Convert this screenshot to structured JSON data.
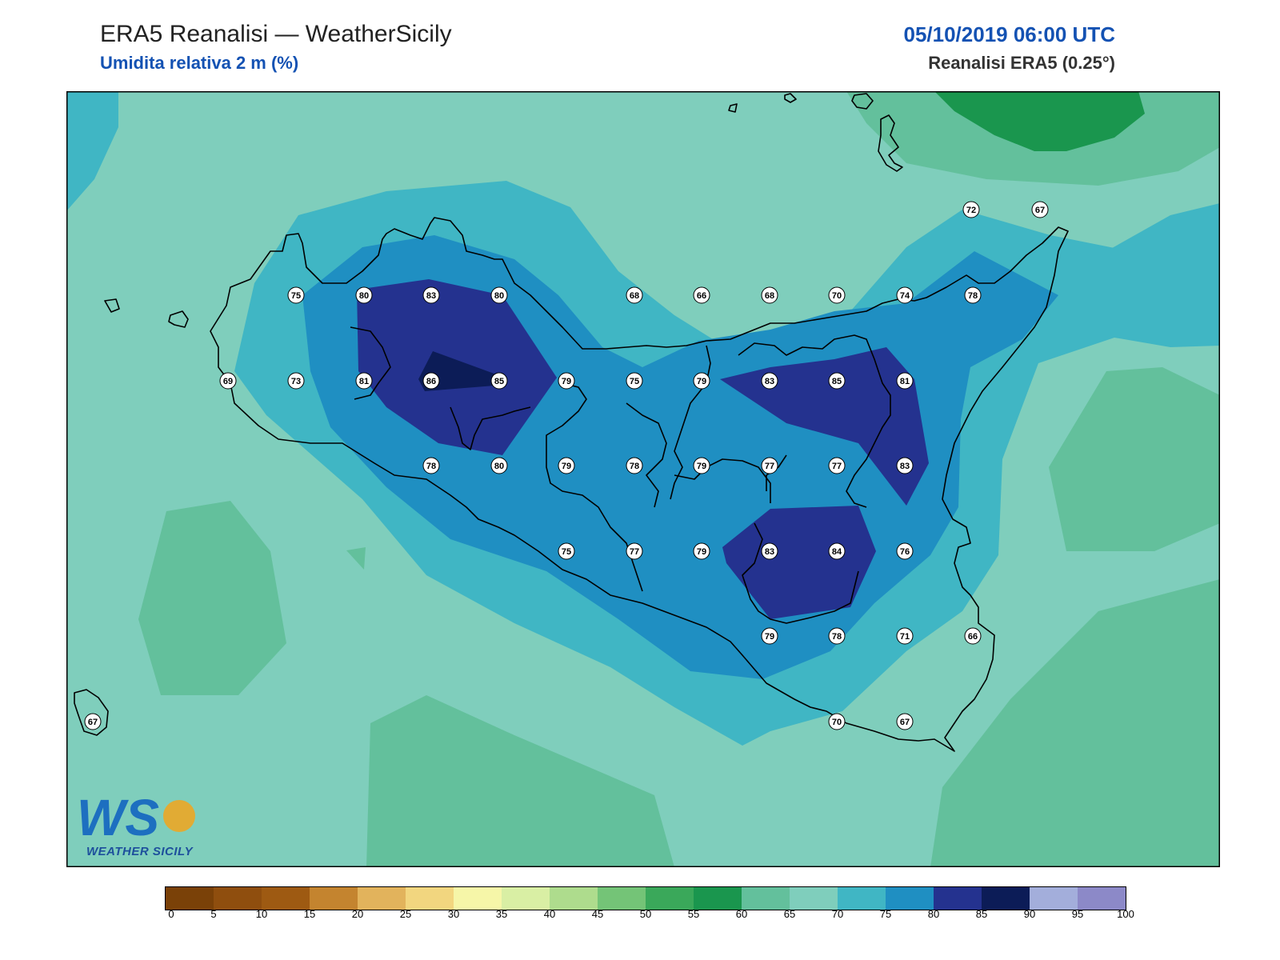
{
  "header": {
    "title": "ERA5 Reanalisi — WeatherSicily",
    "subtitle": "Umidita relativa 2 m (%)",
    "datetime": "05/10/2019 06:00 UTC",
    "source": "Reanalisi ERA5 (0.25°)"
  },
  "map": {
    "variable": "relative humidity 2 m",
    "unit": "%",
    "station_values": [
      {
        "value": "72"
      },
      {
        "value": "67"
      },
      {
        "value": "75"
      },
      {
        "value": "80"
      },
      {
        "value": "83"
      },
      {
        "value": "80"
      },
      {
        "value": "68"
      },
      {
        "value": "66"
      },
      {
        "value": "68"
      },
      {
        "value": "70"
      },
      {
        "value": "74"
      },
      {
        "value": "78"
      },
      {
        "value": "69"
      },
      {
        "value": "73"
      },
      {
        "value": "81"
      },
      {
        "value": "86"
      },
      {
        "value": "85"
      },
      {
        "value": "79"
      },
      {
        "value": "75"
      },
      {
        "value": "79"
      },
      {
        "value": "83"
      },
      {
        "value": "85"
      },
      {
        "value": "81"
      },
      {
        "value": "78"
      },
      {
        "value": "80"
      },
      {
        "value": "79"
      },
      {
        "value": "78"
      },
      {
        "value": "79"
      },
      {
        "value": "77"
      },
      {
        "value": "77"
      },
      {
        "value": "83"
      },
      {
        "value": "75"
      },
      {
        "value": "77"
      },
      {
        "value": "79"
      },
      {
        "value": "83"
      },
      {
        "value": "84"
      },
      {
        "value": "76"
      },
      {
        "value": "79"
      },
      {
        "value": "78"
      },
      {
        "value": "71"
      },
      {
        "value": "66"
      },
      {
        "value": "67"
      },
      {
        "value": "70"
      },
      {
        "value": "67"
      }
    ]
  },
  "colorbar": {
    "ticks": [
      "0",
      "5",
      "10",
      "15",
      "20",
      "25",
      "30",
      "35",
      "40",
      "45",
      "50",
      "55",
      "60",
      "65",
      "70",
      "75",
      "80",
      "85",
      "90",
      "95",
      "100"
    ],
    "colors": [
      "#7a4108",
      "#8f4e0e",
      "#9e5a12",
      "#c4842f",
      "#e2b35c",
      "#f2d67f",
      "#f6f6a8",
      "#d9efa4",
      "#aedc8d",
      "#74c477",
      "#3aa85a",
      "#1a964e",
      "#63c09c",
      "#7fcebc",
      "#40b6c4",
      "#1f8fc2",
      "#24328f",
      "#0c1c57",
      "#a3aedb",
      "#8c89c8"
    ]
  },
  "logo": {
    "mark": "WS",
    "caption": "WEATHER SICILY"
  }
}
